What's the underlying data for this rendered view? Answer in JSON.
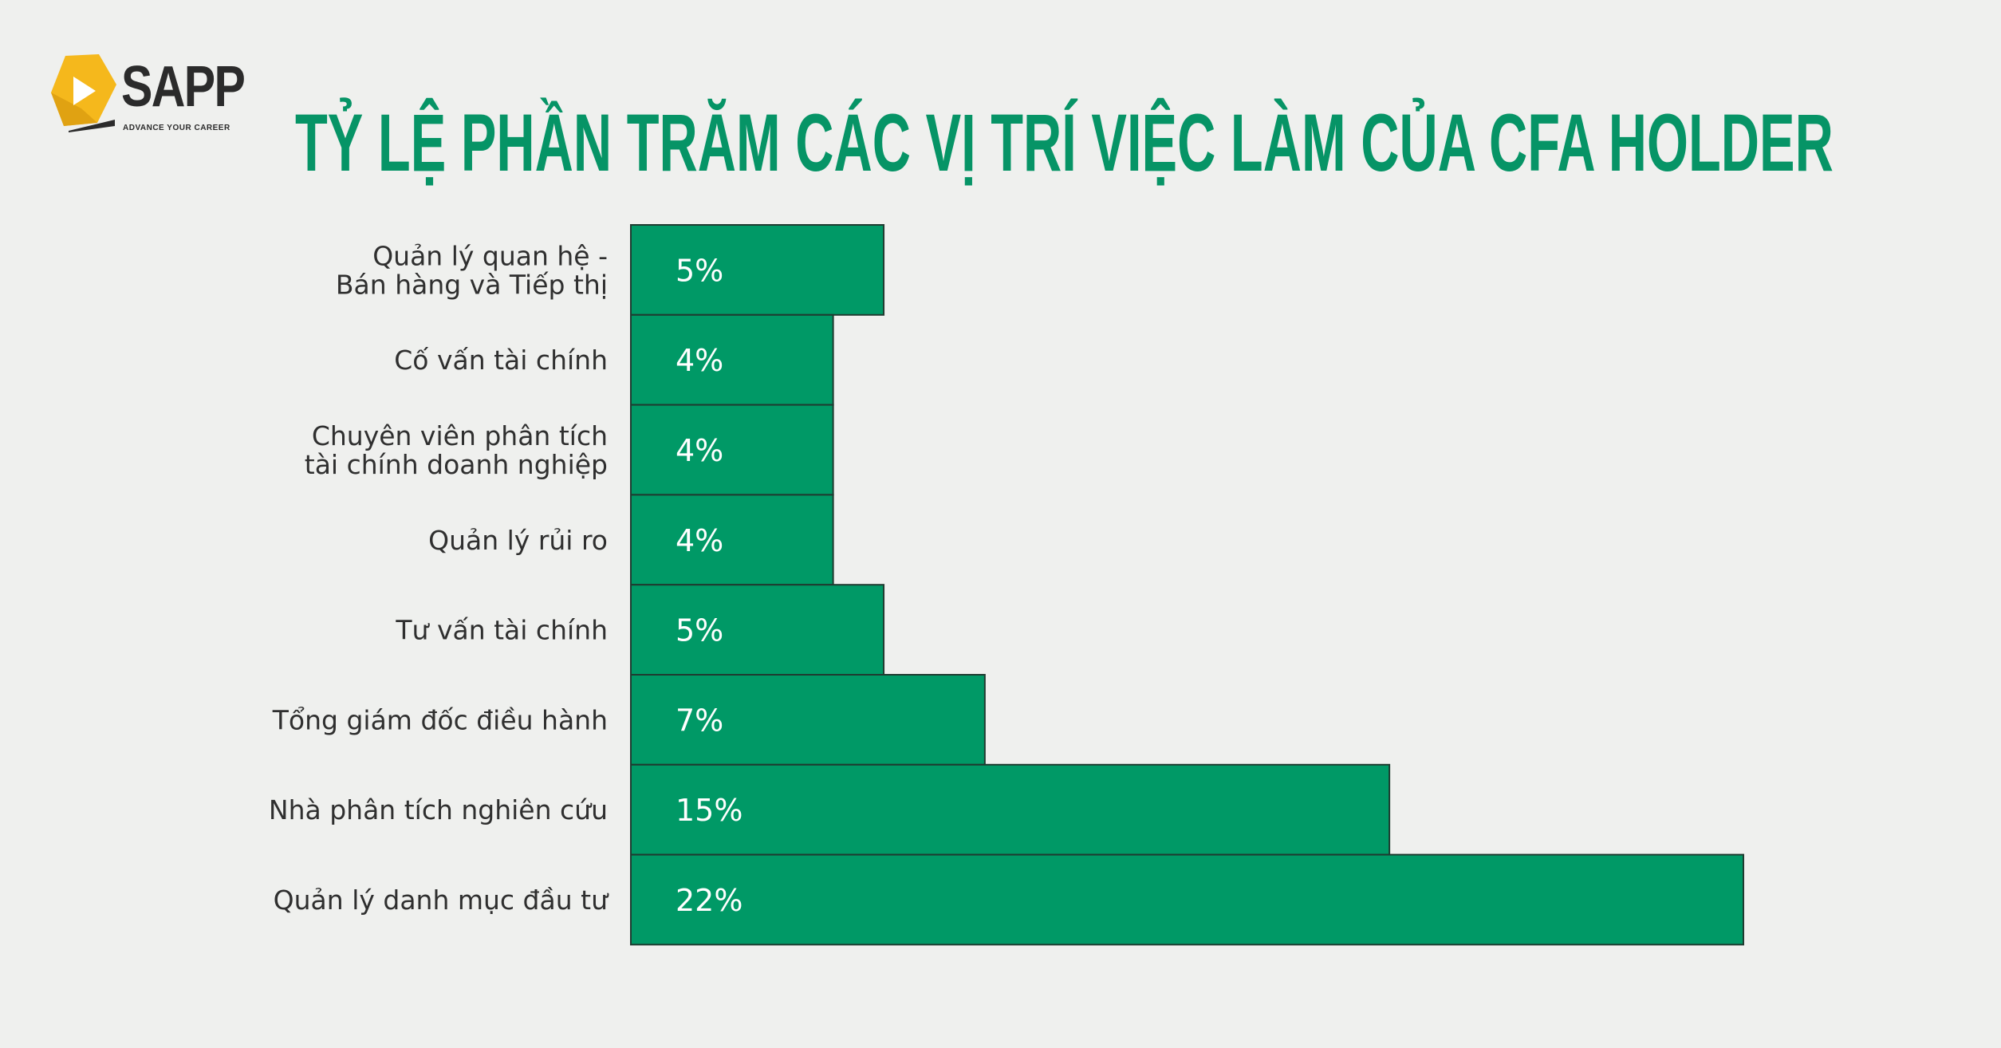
{
  "logo": {
    "name": "SAPP",
    "tagline": "ADVANCE YOUR CAREER"
  },
  "colors": {
    "bar_fill": "#009966",
    "bar_stroke": "#1f3b30",
    "title": "#069466",
    "label_text": "#2f2f2f",
    "value_text": "#ffffff",
    "logo_yellow": "#f5b81c"
  },
  "chart_data": {
    "type": "bar",
    "orientation": "horizontal",
    "title": "TỶ LỆ PHẦN TRĂM CÁC VỊ TRÍ VIỆC LÀM CỦA CFA HOLDER",
    "categories": [
      "Quản lý quan hệ -\nBán hàng và Tiếp thị",
      "Cố vấn tài chính",
      "Chuyên viên phân tích\ntài chính doanh nghiệp",
      "Quản lý rủi ro",
      "Tư vấn tài chính",
      "Tổng giám đốc điều hành",
      "Nhà phân tích nghiên cứu",
      "Quản lý danh mục đầu tư"
    ],
    "values": [
      5,
      4,
      4,
      4,
      5,
      7,
      15,
      22
    ],
    "value_labels": [
      "5%",
      "4%",
      "4%",
      "4%",
      "5%",
      "7%",
      "15%",
      "22%"
    ],
    "unit": "%",
    "xlim": [
      0,
      22
    ],
    "grid": false,
    "legend": "none"
  }
}
